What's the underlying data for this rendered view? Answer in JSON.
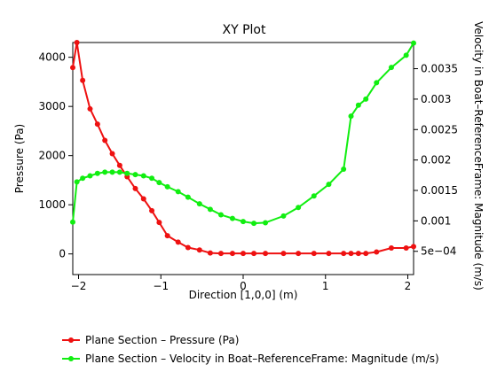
{
  "chart_data": {
    "type": "line",
    "title": "XY Plot",
    "xlabel": "Direction [1,0,0] (m)",
    "ylabel_left": "Pressure (Pa)",
    "ylabel_right": "Velocity in Boat–ReferenceFrame: Magnitude (m/s)",
    "xlim": [
      -2.07,
      2.07
    ],
    "ylim_left": [
      -420,
      4300
    ],
    "ylim_right": [
      0.000118,
      0.00393
    ],
    "x_ticks": [
      -2,
      -1,
      0,
      1,
      2
    ],
    "x_tick_labels": [
      "−2",
      "−1",
      "0",
      "1",
      "2"
    ],
    "y_left_ticks": [
      0,
      1000,
      2000,
      3000,
      4000
    ],
    "y_left_tick_labels": [
      "0",
      "1000",
      "2000",
      "3000",
      "4000"
    ],
    "y_right_ticks": [
      0.0005,
      0.001,
      0.0015,
      0.002,
      0.0025,
      0.003,
      0.0035
    ],
    "y_right_tick_labels": [
      "5e−04",
      "0.001",
      "0.0015",
      "0.002",
      "0.0025",
      "0.003",
      "0.0035"
    ],
    "grid": false,
    "legend_position": "bottom",
    "series": [
      {
        "name": "Plane Section – Pressure (Pa)",
        "axis": "left",
        "color": "#ee1111",
        "x": [
          -2.07,
          -2.02,
          -1.95,
          -1.86,
          -1.77,
          -1.68,
          -1.59,
          -1.5,
          -1.41,
          -1.31,
          -1.21,
          -1.11,
          -1.02,
          -0.92,
          -0.79,
          -0.67,
          -0.53,
          -0.4,
          -0.27,
          -0.13,
          0.0,
          0.13,
          0.27,
          0.49,
          0.67,
          0.86,
          1.04,
          1.22,
          1.31,
          1.4,
          1.49,
          1.62,
          1.8,
          1.98,
          2.07
        ],
        "y": [
          3790,
          4300,
          3530,
          2950,
          2640,
          2310,
          2040,
          1800,
          1570,
          1330,
          1120,
          880,
          640,
          370,
          240,
          130,
          80,
          20,
          10,
          10,
          10,
          10,
          10,
          10,
          10,
          10,
          10,
          10,
          10,
          10,
          10,
          40,
          120,
          120,
          150
        ]
      },
      {
        "name": "Plane Section – Velocity in Boat–ReferenceFrame: Magnitude (m/s)",
        "axis": "right",
        "color": "#11ee11",
        "x": [
          -2.07,
          -2.02,
          -1.95,
          -1.86,
          -1.77,
          -1.68,
          -1.59,
          -1.5,
          -1.41,
          -1.31,
          -1.21,
          -1.11,
          -1.02,
          -0.92,
          -0.79,
          -0.67,
          -0.53,
          -0.4,
          -0.27,
          -0.13,
          0.0,
          0.13,
          0.27,
          0.49,
          0.67,
          0.86,
          1.04,
          1.22,
          1.31,
          1.4,
          1.49,
          1.62,
          1.8,
          1.98,
          2.07
        ],
        "y": [
          0.00098,
          0.00164,
          0.0017,
          0.00174,
          0.00178,
          0.0018,
          0.0018,
          0.0018,
          0.00178,
          0.00176,
          0.00174,
          0.0017,
          0.00163,
          0.00156,
          0.00148,
          0.00139,
          0.00128,
          0.00119,
          0.0011,
          0.00104,
          0.00099,
          0.00096,
          0.00097,
          0.00108,
          0.00122,
          0.00141,
          0.0016,
          0.00185,
          0.00272,
          0.0029,
          0.003,
          0.00327,
          0.00352,
          0.00372,
          0.00392
        ]
      }
    ]
  }
}
